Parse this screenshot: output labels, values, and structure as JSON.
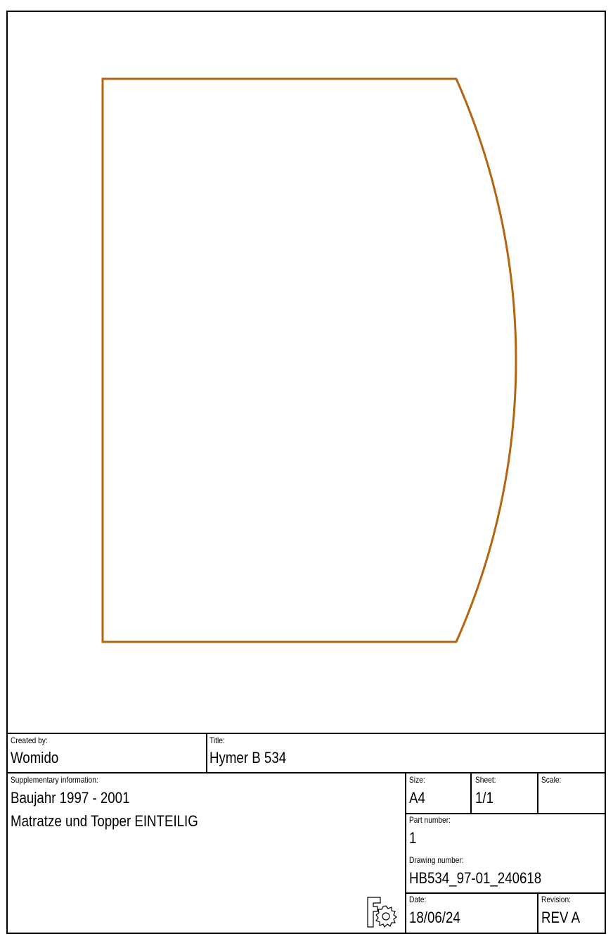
{
  "drawing": {
    "outline_color": "#B5650F",
    "shape": "rectangle-with-convex-arc-right-edge"
  },
  "title_block": {
    "created_by_label": "Created by:",
    "created_by": "Womido",
    "title_label": "Title:",
    "title": "Hymer B 534",
    "supplementary_label": "Supplementary information:",
    "supplementary_lines": [
      "Baujahr 1997 - 2001",
      "Matratze und Topper EINTEILIG"
    ],
    "size_label": "Size:",
    "size": "A4",
    "sheet_label": "Sheet:",
    "sheet": "1/1",
    "scale_label": "Scale:",
    "scale": "",
    "part_number_label": "Part number:",
    "part_number": "1",
    "drawing_number_label": "Drawing number:",
    "drawing_number": "HB534_97-01_240618",
    "date_label": "Date:",
    "date": "18/06/24",
    "revision_label": "Revision:",
    "revision": "REV A",
    "logo_icon": "fusion-logo-icon"
  }
}
